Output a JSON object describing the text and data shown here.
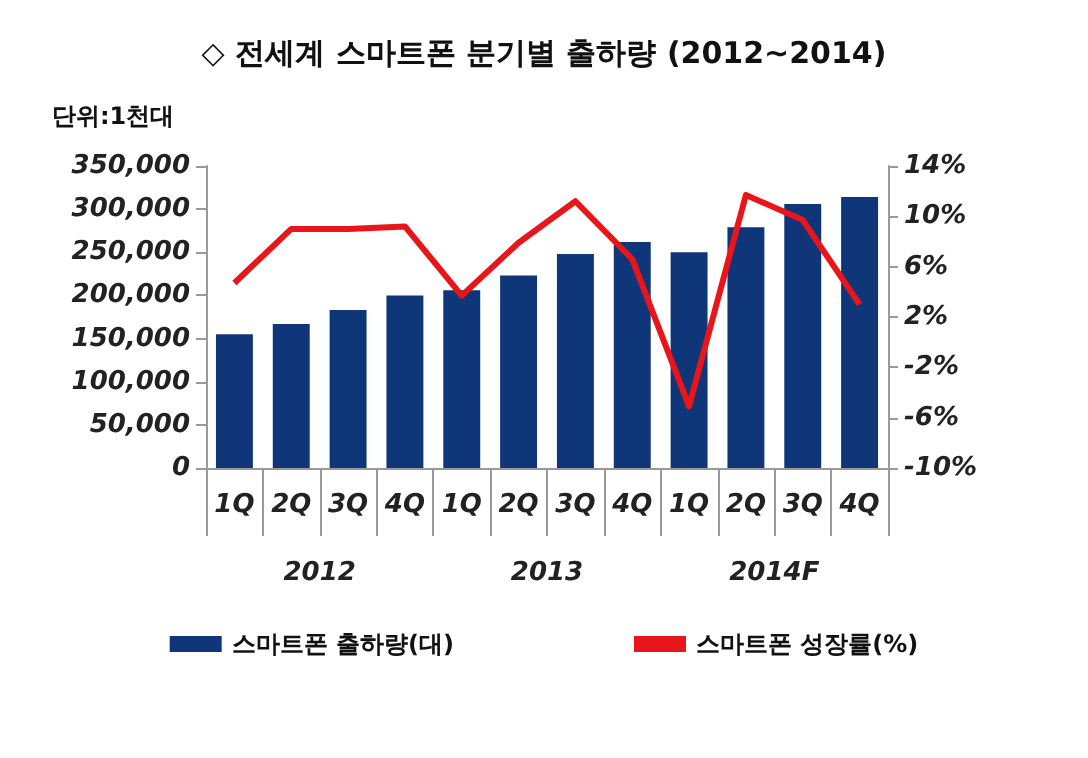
{
  "chart_data": {
    "type": "bar",
    "title": "◇ 전세계 스마트폰 분기별 출하량 (2012~2014)",
    "ylabel": "단위:1천대",
    "categories": [
      "1Q",
      "2Q",
      "3Q",
      "4Q",
      "1Q",
      "2Q",
      "3Q",
      "4Q",
      "1Q",
      "2Q",
      "3Q",
      "4Q"
    ],
    "annotations": [
      "2012",
      "2013",
      "2014F"
    ],
    "series": [
      {
        "name": "스마트폰 출하량(대)",
        "color": "#10367a",
        "values": [
          155000,
          167000,
          183000,
          200000,
          206000,
          223000,
          248000,
          262000,
          250000,
          279000,
          306000,
          314000
        ]
      },
      {
        "name": "스마트폰 성장률(%)",
        "type": "line",
        "axis": "y2",
        "color": "#e8151b",
        "values": [
          4.7,
          9.0,
          9.0,
          9.2,
          3.7,
          7.9,
          11.2,
          6.6,
          -5.1,
          11.7,
          9.7,
          3.0
        ]
      }
    ],
    "ylim": [
      0,
      350000
    ],
    "yticks": [
      {
        "value": 0,
        "label": "0"
      },
      {
        "value": 50000,
        "label": "50,000"
      },
      {
        "value": 100000,
        "label": "100,000"
      },
      {
        "value": 150000,
        "label": "150,000"
      },
      {
        "value": 200000,
        "label": "200,000"
      },
      {
        "value": 250000,
        "label": "250,000"
      },
      {
        "value": 300000,
        "label": "300,000"
      },
      {
        "value": 350000,
        "label": "350,000"
      }
    ],
    "y2lim": [
      -10,
      14
    ],
    "y2ticks": [
      {
        "value": -10,
        "label": "-10%"
      },
      {
        "value": -6,
        "label": "-6%"
      },
      {
        "value": -2,
        "label": "-2%"
      },
      {
        "value": 2,
        "label": "2%"
      },
      {
        "value": 6,
        "label": "6%"
      },
      {
        "value": 10,
        "label": "10%"
      },
      {
        "value": 14,
        "label": "14%"
      }
    ],
    "grid": false,
    "legend": "bottom",
    "marker": "none",
    "line_style": "solid"
  }
}
